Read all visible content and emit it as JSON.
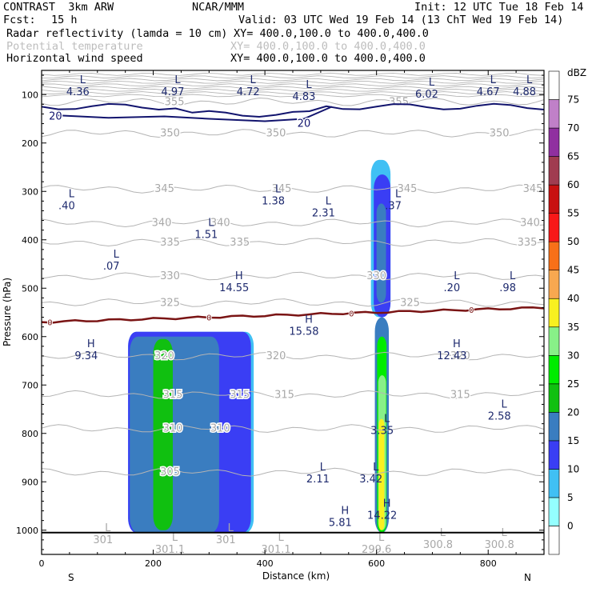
{
  "header": {
    "model": "CONTRAST  3km ARW",
    "org": "NCAR/MMM",
    "init": "Init: 12 UTC Tue 18 Feb 14",
    "fcst_label": "Fcst:",
    "fcst_value": "15 h",
    "valid": "Valid: 03 UTC Wed 19 Feb 14 (13 ChT Wed 19 Feb 14)",
    "fields": [
      {
        "name": "Radar reflectivity (lamda = 10 cm)",
        "xy": "XY= 400.0,100.0 to 400.0,400.0",
        "muted": false
      },
      {
        "name": "Potential temperature",
        "xy": "XY= 400.0,100.0 to 400.0,400.0",
        "muted": true
      },
      {
        "name": "Horizontal wind speed",
        "xy": "XY= 400.0,100.0 to 400.0,400.0",
        "muted": false
      }
    ]
  },
  "colors": {
    "theta": "#b4b4b4",
    "wind": "#12146e",
    "freezing": "#7a1414",
    "label": "#1e2a6e"
  },
  "chart_data": {
    "type": "heatmap",
    "xlabel": "Distance (km)",
    "ylabel": "Pressure (hPa)",
    "xlim": [
      0,
      900
    ],
    "ylim": [
      1050,
      50
    ],
    "x_ticks": [
      0,
      200,
      400,
      600,
      800
    ],
    "y_ticks": [
      100,
      200,
      300,
      400,
      500,
      600,
      700,
      800,
      900,
      1000
    ],
    "end_labels": {
      "left": "S",
      "right": "N"
    },
    "colorbar": {
      "unit": "dBZ",
      "levels": [
        0,
        5,
        10,
        15,
        20,
        25,
        30,
        35,
        40,
        45,
        50,
        55,
        60,
        65,
        70,
        75
      ],
      "colors": [
        "#ffffff",
        "#94ffff",
        "#40c0f4",
        "#3a3ef4",
        "#3a7dc0",
        "#10c010",
        "#00ec00",
        "#88f088",
        "#f8f020",
        "#f8a850",
        "#f87018",
        "#f81818",
        "#c81010",
        "#a03c50",
        "#9030a0",
        "#c080c8",
        "#ffffff"
      ]
    },
    "reflectivity_regions": [
      {
        "dbz": 5,
        "x": [
          155,
          380
        ],
        "p": [
          590,
          1005
        ]
      },
      {
        "dbz": 10,
        "x": [
          155,
          375
        ],
        "p": [
          590,
          1005
        ]
      },
      {
        "dbz": 15,
        "x": [
          158,
          318
        ],
        "p": [
          600,
          1005
        ]
      },
      {
        "dbz": 20,
        "x": [
          200,
          235
        ],
        "p": [
          605,
          1000
        ]
      },
      {
        "dbz": 5,
        "x": [
          590,
          625
        ],
        "p": [
          235,
          560
        ]
      },
      {
        "dbz": 10,
        "x": [
          595,
          625
        ],
        "p": [
          265,
          560
        ]
      },
      {
        "dbz": 15,
        "x": [
          600,
          617
        ],
        "p": [
          325,
          530
        ]
      },
      {
        "dbz": 15,
        "x": [
          597,
          622
        ],
        "p": [
          560,
          1005
        ]
      },
      {
        "dbz": 25,
        "x": [
          601,
          618
        ],
        "p": [
          600,
          1005
        ]
      },
      {
        "dbz": 30,
        "x": [
          603,
          617
        ],
        "p": [
          680,
          1000
        ]
      },
      {
        "dbz": 35,
        "x": [
          604,
          614
        ],
        "p": [
          770,
          1000
        ]
      }
    ],
    "theta_contours": [
      {
        "level": 355,
        "p": 115,
        "labels": [
          {
            "x": 238,
            "text": "355"
          },
          {
            "x": 640,
            "text": "355"
          }
        ]
      },
      {
        "level": 350,
        "p": 180,
        "labels": [
          {
            "x": 230,
            "text": "350"
          },
          {
            "x": 420,
            "text": "350"
          },
          {
            "x": 820,
            "text": "350"
          }
        ]
      },
      {
        "level": 345,
        "p": 295,
        "labels": [
          {
            "x": 220,
            "text": "345"
          },
          {
            "x": 430,
            "text": "345"
          },
          {
            "x": 655,
            "text": "345"
          },
          {
            "x": 880,
            "text": "345"
          }
        ]
      },
      {
        "level": 340,
        "p": 365,
        "labels": [
          {
            "x": 215,
            "text": "340"
          },
          {
            "x": 320,
            "text": "340"
          },
          {
            "x": 875,
            "text": "340"
          }
        ]
      },
      {
        "level": 335,
        "p": 405,
        "labels": [
          {
            "x": 230,
            "text": "335"
          },
          {
            "x": 355,
            "text": "335"
          },
          {
            "x": 870,
            "text": "335"
          }
        ]
      },
      {
        "level": 330,
        "p": 475,
        "labels": [
          {
            "x": 230,
            "text": "330"
          },
          {
            "x": 600,
            "text": "330"
          }
        ]
      },
      {
        "level": 325,
        "p": 530,
        "labels": [
          {
            "x": 230,
            "text": "325"
          },
          {
            "x": 660,
            "text": "325"
          }
        ]
      },
      {
        "level": 320,
        "p": 640,
        "labels": [
          {
            "x": 220,
            "text": "320"
          },
          {
            "x": 420,
            "text": "320"
          },
          {
            "x": 750,
            "text": "320"
          }
        ]
      },
      {
        "level": 315,
        "p": 720,
        "labels": [
          {
            "x": 235,
            "text": "315"
          },
          {
            "x": 355,
            "text": "315"
          },
          {
            "x": 435,
            "text": "315"
          },
          {
            "x": 750,
            "text": "315"
          }
        ]
      },
      {
        "level": 310,
        "p": 790,
        "labels": [
          {
            "x": 235,
            "text": "310"
          },
          {
            "x": 320,
            "text": "310"
          }
        ]
      },
      {
        "level": 305,
        "p": 880,
        "labels": [
          {
            "x": 230,
            "text": "305"
          }
        ]
      }
    ],
    "wind_contours": [
      {
        "level": 20,
        "labels": [
          {
            "x": 25,
            "p": 143,
            "text": "20"
          },
          {
            "x": 470,
            "p": 158,
            "text": "20"
          }
        ]
      }
    ],
    "freezing_level": {
      "level": 0,
      "p_left": 570,
      "p_right": 540,
      "labels": [
        {
          "x": 15,
          "text": "0"
        },
        {
          "x": 300,
          "text": "0"
        },
        {
          "x": 555,
          "text": "0"
        },
        {
          "x": 770,
          "text": "0"
        }
      ]
    },
    "extrema": [
      {
        "kind": "L",
        "x": 65,
        "p": 85,
        "value": "4.36",
        "muted": false
      },
      {
        "kind": "L",
        "x": 235,
        "p": 85,
        "value": "4.97",
        "muted": false
      },
      {
        "kind": "L",
        "x": 370,
        "p": 85,
        "value": "4.72",
        "muted": false
      },
      {
        "kind": "L",
        "x": 470,
        "p": 95,
        "value": "4.83",
        "muted": false
      },
      {
        "kind": "L",
        "x": 690,
        "p": 90,
        "value": "6.02",
        "muted": false
      },
      {
        "kind": "L",
        "x": 800,
        "p": 85,
        "value": "4.67",
        "muted": false
      },
      {
        "kind": "L",
        "x": 865,
        "p": 85,
        "value": "4.88",
        "muted": false
      },
      {
        "kind": "L",
        "x": 45,
        "p": 320,
        "value": ".40",
        "muted": false
      },
      {
        "kind": "L",
        "x": 415,
        "p": 310,
        "value": "1.38",
        "muted": false
      },
      {
        "kind": "L",
        "x": 505,
        "p": 335,
        "value": "2.31",
        "muted": false
      },
      {
        "kind": "L",
        "x": 630,
        "p": 320,
        "value": ".37",
        "muted": false
      },
      {
        "kind": "L",
        "x": 295,
        "p": 380,
        "value": "1.51",
        "muted": false
      },
      {
        "kind": "L",
        "x": 125,
        "p": 445,
        "value": ".07",
        "muted": false
      },
      {
        "kind": "H",
        "x": 345,
        "p": 490,
        "value": "14.55",
        "muted": false
      },
      {
        "kind": "L",
        "x": 735,
        "p": 490,
        "value": ".20",
        "muted": false
      },
      {
        "kind": "L",
        "x": 835,
        "p": 490,
        "value": ".98",
        "muted": false
      },
      {
        "kind": "H",
        "x": 470,
        "p": 580,
        "value": "15.58",
        "muted": false
      },
      {
        "kind": "H",
        "x": 80,
        "p": 630,
        "value": "9.34",
        "muted": false
      },
      {
        "kind": "H",
        "x": 735,
        "p": 630,
        "value": "12.43",
        "muted": false
      },
      {
        "kind": "L",
        "x": 820,
        "p": 755,
        "value": "2.58",
        "muted": false
      },
      {
        "kind": "L",
        "x": 610,
        "p": 785,
        "value": "3.35",
        "muted": false
      },
      {
        "kind": "L",
        "x": 495,
        "p": 885,
        "value": "2.11",
        "muted": false
      },
      {
        "kind": "L",
        "x": 590,
        "p": 885,
        "value": "3.42",
        "muted": false
      },
      {
        "kind": "H",
        "x": 535,
        "p": 975,
        "value": "5.81",
        "muted": false
      },
      {
        "kind": "H",
        "x": 610,
        "p": 960,
        "value": "14.22",
        "muted": false
      },
      {
        "kind": "L",
        "x": 110,
        "p": 1010,
        "value": "301",
        "muted": true
      },
      {
        "kind": "L",
        "x": 230,
        "p": 1030,
        "value": "301.1",
        "muted": true
      },
      {
        "kind": "L",
        "x": 330,
        "p": 1010,
        "value": "301",
        "muted": true
      },
      {
        "kind": "L",
        "x": 420,
        "p": 1030,
        "value": "301.1",
        "muted": true
      },
      {
        "kind": "L",
        "x": 600,
        "p": 1030,
        "value": "299.6",
        "muted": true
      },
      {
        "kind": "L",
        "x": 710,
        "p": 1020,
        "value": "300.8",
        "muted": true
      },
      {
        "kind": "L",
        "x": 820,
        "p": 1020,
        "value": "300.8",
        "muted": true
      }
    ]
  }
}
